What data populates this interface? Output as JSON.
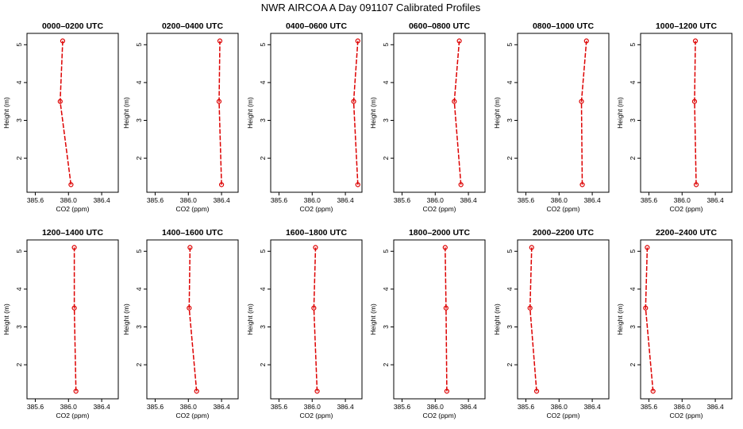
{
  "figure": {
    "title": "NWR AIRCOA A  Day 091107  Calibrated Profiles"
  },
  "colors": {
    "series": "#dd0000",
    "axis": "#000000",
    "background": "#ffffff"
  },
  "chart_data": [
    {
      "type": "line",
      "title": "0000–0200 UTC",
      "xlabel": "CO2 (ppm)",
      "ylabel": "Height (m)",
      "xlim": [
        385.5,
        386.6
      ],
      "ylim": [
        1.1,
        5.3
      ],
      "xticks": [
        "385.6",
        "386.0",
        "386.4"
      ],
      "yticks": [
        "2",
        "3",
        "4",
        "5"
      ],
      "grid": false,
      "series": [
        {
          "x": [
            386.03,
            385.9,
            385.93
          ],
          "y": [
            1.3,
            3.5,
            5.1
          ]
        }
      ]
    },
    {
      "type": "line",
      "title": "0200–0400 UTC",
      "xlabel": "CO2 (ppm)",
      "ylabel": "Height (m)",
      "xlim": [
        385.5,
        386.6
      ],
      "ylim": [
        1.1,
        5.3
      ],
      "xticks": [
        "385.6",
        "386.0",
        "386.4"
      ],
      "yticks": [
        "2",
        "3",
        "4",
        "5"
      ],
      "grid": false,
      "series": [
        {
          "x": [
            386.4,
            386.37,
            386.38
          ],
          "y": [
            1.3,
            3.5,
            5.1
          ]
        }
      ]
    },
    {
      "type": "line",
      "title": "0400–0600 UTC",
      "xlabel": "CO2 (ppm)",
      "ylabel": "Height (m)",
      "xlim": [
        385.5,
        386.6
      ],
      "ylim": [
        1.1,
        5.3
      ],
      "xticks": [
        "385.6",
        "386.0",
        "386.4"
      ],
      "yticks": [
        "2",
        "3",
        "4",
        "5"
      ],
      "grid": false,
      "series": [
        {
          "x": [
            386.55,
            386.5,
            386.55
          ],
          "y": [
            1.3,
            3.5,
            5.1
          ]
        }
      ]
    },
    {
      "type": "line",
      "title": "0600–0800 UTC",
      "xlabel": "CO2 (ppm)",
      "ylabel": "Height (m)",
      "xlim": [
        385.5,
        386.6
      ],
      "ylim": [
        1.1,
        5.3
      ],
      "xticks": [
        "385.6",
        "386.0",
        "386.4"
      ],
      "yticks": [
        "2",
        "3",
        "4",
        "5"
      ],
      "grid": false,
      "series": [
        {
          "x": [
            386.31,
            386.23,
            386.29
          ],
          "y": [
            1.3,
            3.5,
            5.1
          ]
        }
      ]
    },
    {
      "type": "line",
      "title": "0800–1000 UTC",
      "xlabel": "CO2 (ppm)",
      "ylabel": "Height (m)",
      "xlim": [
        385.5,
        386.6
      ],
      "ylim": [
        1.1,
        5.3
      ],
      "xticks": [
        "385.6",
        "386.0",
        "386.4"
      ],
      "yticks": [
        "2",
        "3",
        "4",
        "5"
      ],
      "grid": false,
      "series": [
        {
          "x": [
            386.28,
            386.27,
            386.33
          ],
          "y": [
            1.3,
            3.5,
            5.1
          ]
        }
      ]
    },
    {
      "type": "line",
      "title": "1000–1200 UTC",
      "xlabel": "CO2 (ppm)",
      "ylabel": "Height (m)",
      "xlim": [
        385.5,
        386.6
      ],
      "ylim": [
        1.1,
        5.3
      ],
      "xticks": [
        "385.6",
        "386.0",
        "386.4"
      ],
      "yticks": [
        "2",
        "3",
        "4",
        "5"
      ],
      "grid": false,
      "series": [
        {
          "x": [
            386.17,
            386.15,
            386.16
          ],
          "y": [
            1.3,
            3.5,
            5.1
          ]
        }
      ]
    },
    {
      "type": "line",
      "title": "1200–1400 UTC",
      "xlabel": "CO2 (ppm)",
      "ylabel": "Height (m)",
      "xlim": [
        385.5,
        386.6
      ],
      "ylim": [
        1.1,
        5.3
      ],
      "xticks": [
        "385.6",
        "386.0",
        "386.4"
      ],
      "yticks": [
        "2",
        "3",
        "4",
        "5"
      ],
      "grid": false,
      "series": [
        {
          "x": [
            386.09,
            386.07,
            386.07
          ],
          "y": [
            1.3,
            3.5,
            5.1
          ]
        }
      ]
    },
    {
      "type": "line",
      "title": "1400–1600 UTC",
      "xlabel": "CO2 (ppm)",
      "ylabel": "Height (m)",
      "xlim": [
        385.5,
        386.6
      ],
      "ylim": [
        1.1,
        5.3
      ],
      "xticks": [
        "385.6",
        "386.0",
        "386.4"
      ],
      "yticks": [
        "2",
        "3",
        "4",
        "5"
      ],
      "grid": false,
      "series": [
        {
          "x": [
            386.1,
            386.01,
            386.02
          ],
          "y": [
            1.3,
            3.5,
            5.1
          ]
        }
      ]
    },
    {
      "type": "line",
      "title": "1600–1800 UTC",
      "xlabel": "CO2 (ppm)",
      "ylabel": "Height (m)",
      "xlim": [
        385.5,
        386.6
      ],
      "ylim": [
        1.1,
        5.3
      ],
      "xticks": [
        "385.6",
        "386.0",
        "386.4"
      ],
      "yticks": [
        "2",
        "3",
        "4",
        "5"
      ],
      "grid": false,
      "series": [
        {
          "x": [
            386.06,
            386.02,
            386.04
          ],
          "y": [
            1.3,
            3.5,
            5.1
          ]
        }
      ]
    },
    {
      "type": "line",
      "title": "1800–2000 UTC",
      "xlabel": "CO2 (ppm)",
      "ylabel": "Height (m)",
      "xlim": [
        385.5,
        386.6
      ],
      "ylim": [
        1.1,
        5.3
      ],
      "xticks": [
        "385.6",
        "386.0",
        "386.4"
      ],
      "yticks": [
        "2",
        "3",
        "4",
        "5"
      ],
      "grid": false,
      "series": [
        {
          "x": [
            386.14,
            386.13,
            386.12
          ],
          "y": [
            1.3,
            3.5,
            5.1
          ]
        }
      ]
    },
    {
      "type": "line",
      "title": "2000–2200 UTC",
      "xlabel": "CO2 (ppm)",
      "ylabel": "Height (m)",
      "xlim": [
        385.5,
        386.6
      ],
      "ylim": [
        1.1,
        5.3
      ],
      "xticks": [
        "385.6",
        "386.0",
        "386.4"
      ],
      "yticks": [
        "2",
        "3",
        "4",
        "5"
      ],
      "grid": false,
      "series": [
        {
          "x": [
            385.73,
            385.65,
            385.67
          ],
          "y": [
            1.3,
            3.5,
            5.1
          ]
        }
      ]
    },
    {
      "type": "line",
      "title": "2200–2400 UTC",
      "xlabel": "CO2 (ppm)",
      "ylabel": "Height (m)",
      "xlim": [
        385.5,
        386.6
      ],
      "ylim": [
        1.1,
        5.3
      ],
      "xticks": [
        "385.6",
        "386.0",
        "386.4"
      ],
      "yticks": [
        "2",
        "3",
        "4",
        "5"
      ],
      "grid": false,
      "series": [
        {
          "x": [
            385.65,
            385.56,
            385.58
          ],
          "y": [
            1.3,
            3.5,
            5.1
          ]
        }
      ]
    }
  ]
}
